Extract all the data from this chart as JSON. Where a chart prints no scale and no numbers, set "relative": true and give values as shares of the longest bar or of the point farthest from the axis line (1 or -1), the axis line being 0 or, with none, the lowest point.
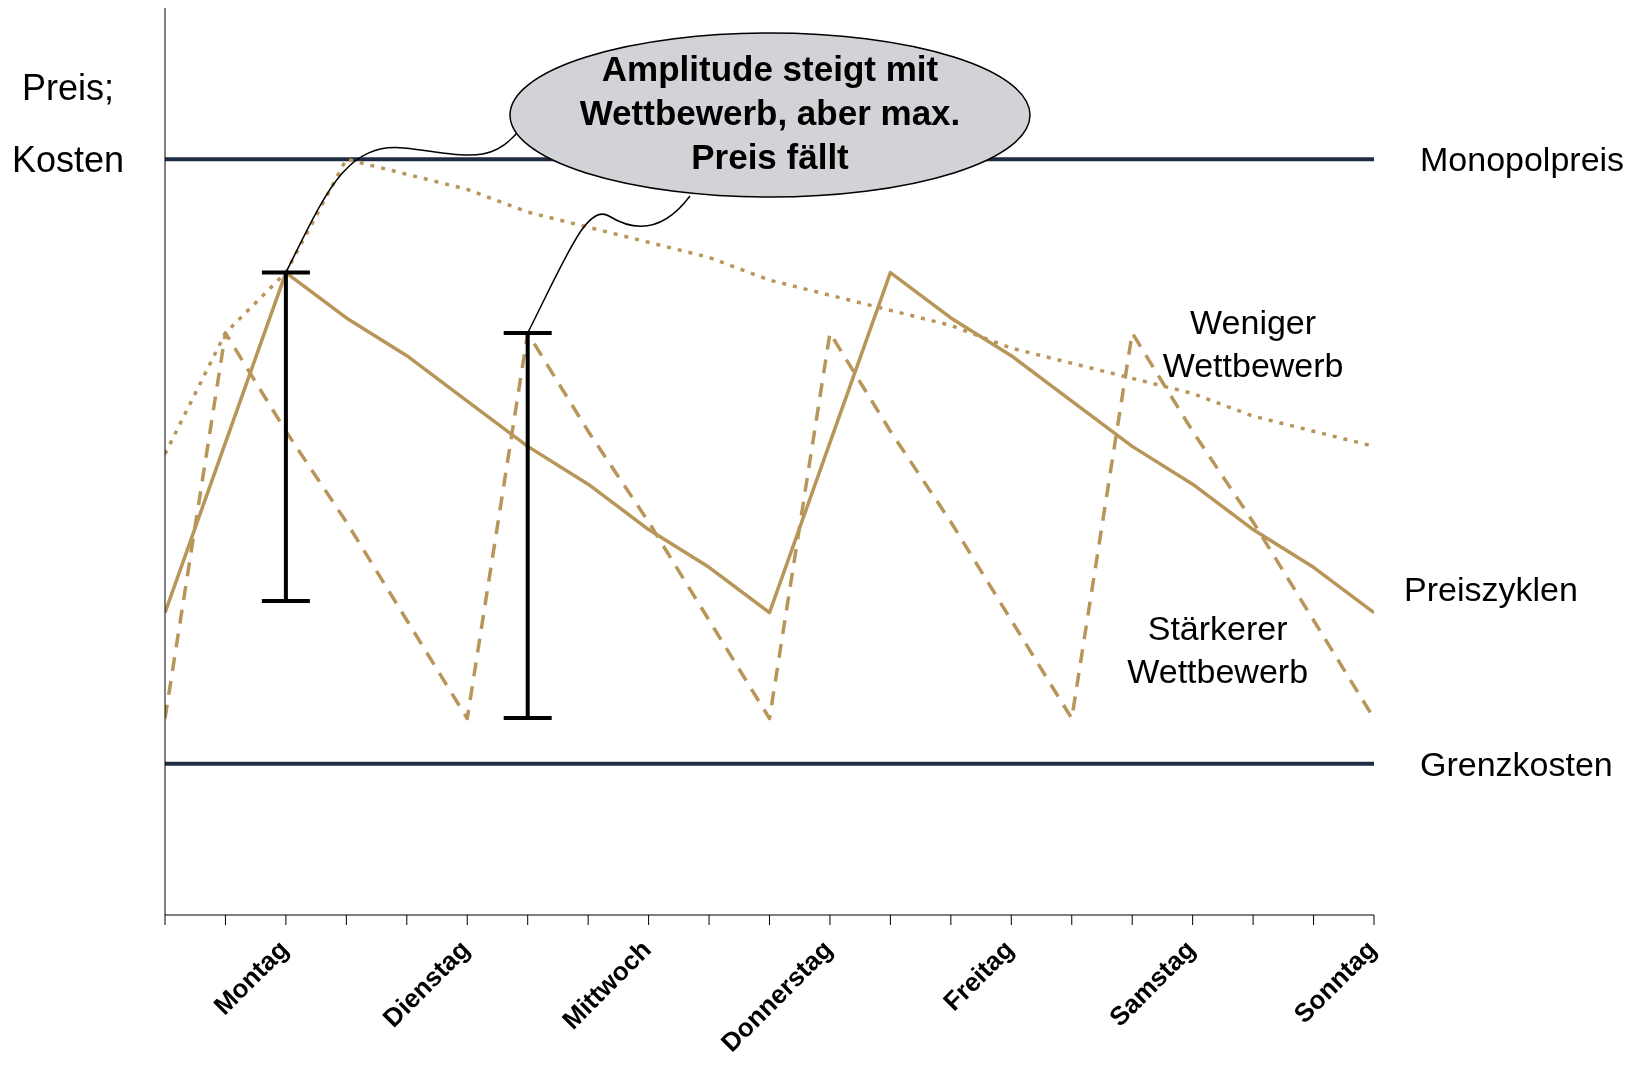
{
  "chart_data": {
    "type": "line",
    "relative": true,
    "ylabel": "Preis; Kosten",
    "categories": [
      null,
      null,
      "Montag",
      null,
      null,
      "Dienstag",
      null,
      null,
      "Mittwoch",
      null,
      null,
      "Donnerstag",
      null,
      null,
      "Freitag",
      null,
      null,
      "Samstag",
      null,
      null,
      "Sonntag"
    ],
    "series": [
      {
        "name": "Preiszyklen",
        "line_style": "solid",
        "color": "#b8965a",
        "values": [
          0.4,
          0.625,
          0.85,
          0.79,
          0.74,
          0.68,
          0.62,
          0.57,
          0.51,
          0.46,
          0.4,
          0.625,
          0.85,
          0.79,
          0.74,
          0.68,
          0.62,
          0.57,
          0.51,
          0.46,
          0.4
        ]
      },
      {
        "name": "Weniger Wettbewerb",
        "line_style": "dotted",
        "color": "#b8965a",
        "values": [
          0.61,
          0.77,
          0.85,
          1.0,
          0.98,
          0.96,
          0.93,
          0.91,
          0.89,
          0.87,
          0.84,
          0.82,
          0.8,
          0.78,
          0.75,
          0.73,
          0.71,
          0.69,
          0.66,
          0.64,
          0.62
        ]
      },
      {
        "name": "Stärkerer Wettbewerb",
        "line_style": "dashed",
        "color": "#b8965a",
        "values": [
          0.26,
          0.77,
          0.64,
          0.52,
          0.39,
          0.26,
          0.77,
          0.64,
          0.52,
          0.39,
          0.26,
          0.77,
          0.64,
          0.52,
          0.39,
          0.26,
          0.77,
          0.64,
          0.52,
          0.39,
          0.26
        ]
      }
    ],
    "ref_lines": [
      {
        "axis": "y",
        "value": 1.0,
        "label": "Monopolpreis",
        "color": "#1f2d44"
      },
      {
        "axis": "y",
        "value": 0.2,
        "label": "Grenzkosten",
        "color": "#1f2d44"
      }
    ],
    "annotations": [
      "Amplitude steigt mit Wettbewerb, aber max. Preis fällt"
    ],
    "marker": "none",
    "grid": false,
    "legend": false
  }
}
